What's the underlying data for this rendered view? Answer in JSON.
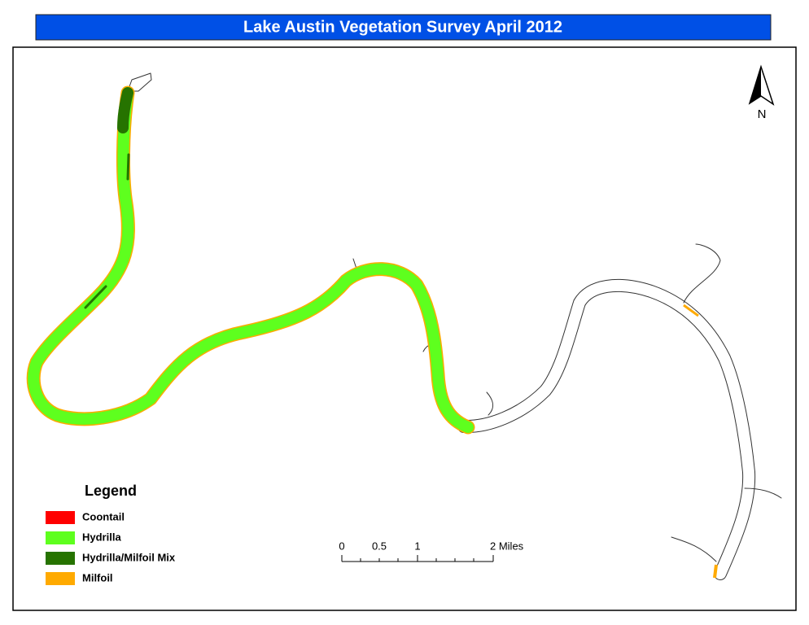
{
  "header": {
    "title": "Lake Austin Vegetation Survey April 2012"
  },
  "legend": {
    "title": "Legend",
    "items": [
      {
        "label": "Coontail",
        "color": "#ff0000"
      },
      {
        "label": "Hydrilla",
        "color": "#5eff1e"
      },
      {
        "label": "Hydrilla/Milfoil Mix",
        "color": "#267300"
      },
      {
        "label": "Milfoil",
        "color": "#ffaa00"
      }
    ]
  },
  "scale_bar": {
    "labels": [
      "0",
      "0.5",
      "1",
      "2 Miles"
    ]
  },
  "north_arrow": {
    "label": "N"
  }
}
